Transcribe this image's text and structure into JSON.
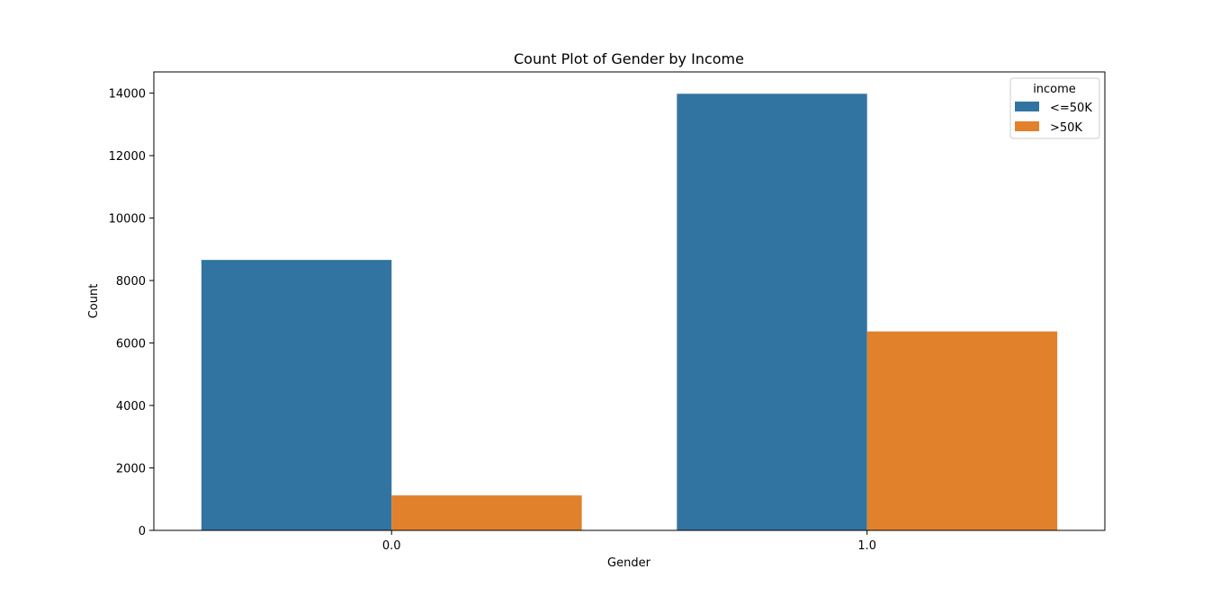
{
  "chart_data": {
    "type": "bar",
    "title": "Count Plot of Gender by Income",
    "xlabel": "Gender",
    "ylabel": "Count",
    "categories": [
      "0.0",
      "1.0"
    ],
    "series": [
      {
        "name": "<=50K",
        "color": "#3274a1",
        "values": [
          8660,
          13980
        ]
      },
      {
        "name": ">50K",
        "color": "#e1812c",
        "values": [
          1120,
          6370
        ]
      }
    ],
    "ylim": [
      0,
      14680
    ],
    "yticks": [
      0,
      2000,
      4000,
      6000,
      8000,
      10000,
      12000,
      14000
    ],
    "ytick_labels": [
      "0",
      "2000",
      "4000",
      "6000",
      "8000",
      "10000",
      "12000",
      "14000"
    ],
    "legend": {
      "title": "income",
      "placement": "top-right"
    },
    "grid": false
  }
}
